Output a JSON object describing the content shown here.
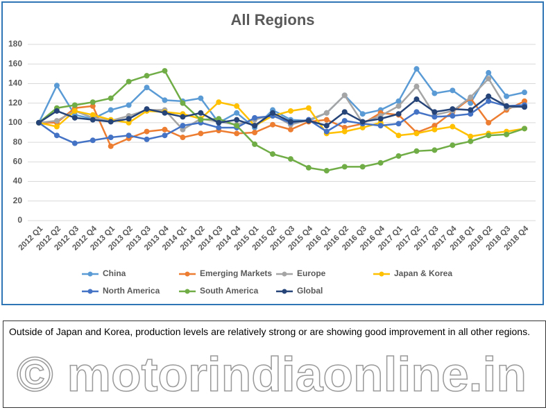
{
  "chart_data": {
    "type": "line",
    "title": "All Regions",
    "categories": [
      "2012 Q1",
      "2012 Q2",
      "2012 Q3",
      "2012 Q4",
      "2013 Q1",
      "2013 Q2",
      "2013 Q3",
      "2013 Q4",
      "2014 Q1",
      "2014 Q2",
      "2014 Q3",
      "2014 Q4",
      "2015 Q1",
      "2015 Q2",
      "2015 Q3",
      "2015 Q4",
      "2016 Q1",
      "2016 Q2",
      "2016 Q3",
      "2016 Q4",
      "2017 Q1",
      "2017 Q2",
      "2017 Q3",
      "2017 Q4",
      "2018 Q1",
      "2018 Q2",
      "2018 Q3",
      "2018 Q4"
    ],
    "series": [
      {
        "name": "China",
        "color": "#5b9bd5",
        "values": [
          100,
          138,
          108,
          104,
          113,
          118,
          136,
          123,
          122,
          125,
          100,
          110,
          95,
          113,
          103,
          102,
          110,
          128,
          109,
          113,
          122,
          155,
          130,
          133,
          120,
          151,
          127,
          131
        ]
      },
      {
        "name": "Emerging Markets",
        "color": "#ed7d31",
        "values": [
          100,
          100,
          115,
          117,
          76,
          84,
          91,
          93,
          85,
          89,
          92,
          89,
          90,
          98,
          93,
          101,
          103,
          95,
          99,
          110,
          108,
          90,
          97,
          111,
          125,
          100,
          113,
          122
        ]
      },
      {
        "name": "Europe",
        "color": "#a5a5a5",
        "values": [
          100,
          102,
          112,
          105,
          102,
          107,
          113,
          113,
          93,
          104,
          101,
          98,
          103,
          108,
          98,
          103,
          110,
          128,
          100,
          107,
          117,
          137,
          108,
          112,
          126,
          145,
          115,
          117
        ]
      },
      {
        "name": "Japan & Korea",
        "color": "#ffc000",
        "values": [
          100,
          96,
          112,
          108,
          103,
          100,
          112,
          111,
          109,
          104,
          121,
          117,
          97,
          107,
          112,
          115,
          89,
          91,
          95,
          100,
          87,
          89,
          93,
          96,
          86,
          89,
          91,
          94
        ]
      },
      {
        "name": "North America",
        "color": "#4472c4",
        "values": [
          100,
          87,
          79,
          82,
          85,
          87,
          83,
          87,
          97,
          100,
          95,
          95,
          105,
          107,
          100,
          103,
          91,
          102,
          99,
          97,
          99,
          111,
          106,
          107,
          109,
          122,
          117,
          118
        ]
      },
      {
        "name": "South America",
        "color": "#70ad47",
        "values": [
          100,
          115,
          118,
          121,
          125,
          142,
          148,
          153,
          120,
          103,
          104,
          97,
          78,
          68,
          63,
          54,
          51,
          55,
          55,
          59,
          66,
          71,
          72,
          77,
          81,
          87,
          88,
          94
        ]
      },
      {
        "name": "Global",
        "color": "#264478",
        "values": [
          100,
          112,
          105,
          103,
          101,
          104,
          114,
          110,
          106,
          110,
          100,
          103,
          97,
          110,
          101,
          102,
          97,
          111,
          101,
          104,
          109,
          124,
          111,
          114,
          113,
          127,
          117,
          116
        ]
      }
    ],
    "ylim": [
      0,
      180
    ],
    "yticks": [
      0,
      20,
      40,
      60,
      80,
      100,
      120,
      140,
      160,
      180
    ],
    "grid": true,
    "legend": "bottom"
  },
  "caption": "Outside of Japan and Korea, production levels are relatively strong or are showing good improvement in all other regions.",
  "watermark": "© motorindiaonline.in"
}
